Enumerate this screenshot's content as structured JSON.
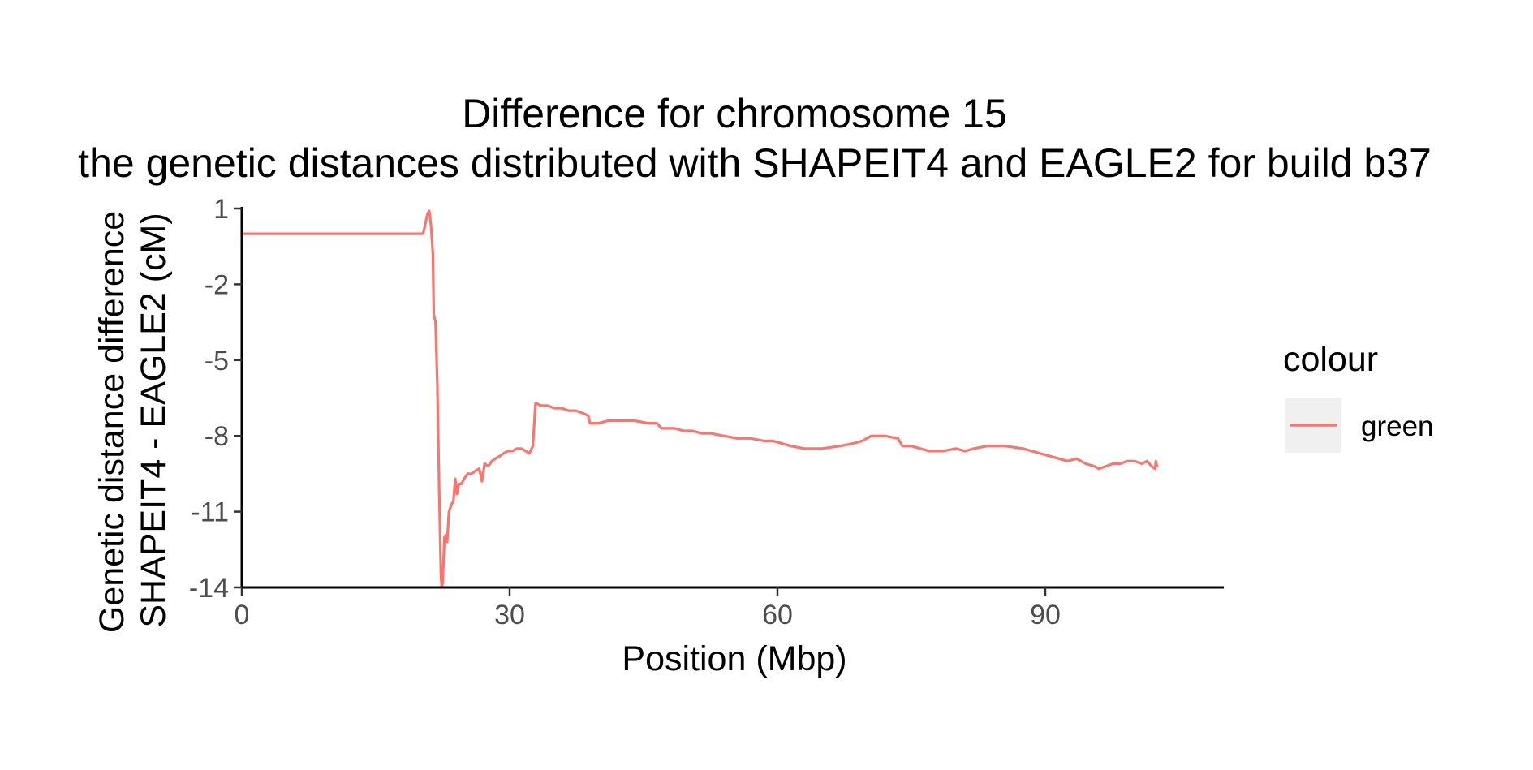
{
  "chart_data": {
    "type": "line",
    "title": "Difference for chromosome 15",
    "subtitle": "the genetic distances distributed with SHAPEIT4 and EAGLE2 for build b37",
    "xlabel": "Position (Mbp)",
    "ylabel_line1": "Genetic distance difference",
    "ylabel_line2": "SHAPEIT4 - EAGLE2 (cM)",
    "xlim": [
      0,
      110
    ],
    "ylim": [
      -14,
      1
    ],
    "x_ticks": [
      0,
      30,
      60,
      90
    ],
    "x_tick_labels": [
      "0",
      "30",
      "60",
      "90"
    ],
    "y_ticks": [
      1,
      -2,
      -5,
      -8,
      -11,
      -14
    ],
    "y_tick_labels": [
      "1",
      "-2",
      "-5",
      "-8",
      "-11",
      "-14"
    ],
    "grid": false,
    "legend": {
      "title": "colour",
      "position": "right",
      "entries": [
        {
          "label": "green",
          "color": "#F8766D"
        }
      ]
    },
    "series": [
      {
        "color": "#F8766D",
        "points": [
          [
            0,
            0
          ],
          [
            20.3,
            0
          ],
          [
            20.5,
            0.3
          ],
          [
            20.8,
            0.8
          ],
          [
            21.0,
            0.9
          ],
          [
            21.2,
            0.3
          ],
          [
            21.4,
            -0.8
          ],
          [
            21.5,
            -3.2
          ],
          [
            21.7,
            -3.5
          ],
          [
            21.9,
            -6.0
          ],
          [
            22.1,
            -10.0
          ],
          [
            22.3,
            -13.5
          ],
          [
            22.4,
            -14.0
          ],
          [
            22.5,
            -13.8
          ],
          [
            22.7,
            -12.0
          ],
          [
            22.9,
            -11.9
          ],
          [
            23.0,
            -12.2
          ],
          [
            23.2,
            -11.0
          ],
          [
            23.5,
            -10.7
          ],
          [
            23.7,
            -10.6
          ],
          [
            23.9,
            -9.7
          ],
          [
            24.1,
            -10.3
          ],
          [
            24.3,
            -9.9
          ],
          [
            24.6,
            -9.9
          ],
          [
            24.9,
            -9.7
          ],
          [
            25.3,
            -9.5
          ],
          [
            25.7,
            -9.5
          ],
          [
            26.1,
            -9.4
          ],
          [
            26.6,
            -9.3
          ],
          [
            26.9,
            -9.8
          ],
          [
            27.2,
            -9.1
          ],
          [
            27.6,
            -9.2
          ],
          [
            28.0,
            -9.0
          ],
          [
            28.4,
            -8.9
          ],
          [
            28.9,
            -8.8
          ],
          [
            29.3,
            -8.7
          ],
          [
            29.8,
            -8.6
          ],
          [
            30.3,
            -8.6
          ],
          [
            30.8,
            -8.5
          ],
          [
            31.3,
            -8.5
          ],
          [
            31.8,
            -8.6
          ],
          [
            32.2,
            -8.7
          ],
          [
            32.6,
            -8.4
          ],
          [
            32.9,
            -6.7
          ],
          [
            33.5,
            -6.8
          ],
          [
            34.2,
            -6.8
          ],
          [
            35.0,
            -6.9
          ],
          [
            35.8,
            -6.9
          ],
          [
            36.6,
            -7.0
          ],
          [
            37.4,
            -7.0
          ],
          [
            38.2,
            -7.1
          ],
          [
            38.8,
            -7.2
          ],
          [
            39.0,
            -7.5
          ],
          [
            40.0,
            -7.5
          ],
          [
            41.0,
            -7.4
          ],
          [
            42.5,
            -7.4
          ],
          [
            44.0,
            -7.4
          ],
          [
            45.5,
            -7.5
          ],
          [
            46.5,
            -7.5
          ],
          [
            47.0,
            -7.7
          ],
          [
            48.5,
            -7.7
          ],
          [
            49.5,
            -7.8
          ],
          [
            50.5,
            -7.8
          ],
          [
            51.5,
            -7.9
          ],
          [
            52.5,
            -7.9
          ],
          [
            54.0,
            -8.0
          ],
          [
            55.5,
            -8.1
          ],
          [
            57.0,
            -8.1
          ],
          [
            58.5,
            -8.2
          ],
          [
            59.5,
            -8.2
          ],
          [
            60.5,
            -8.3
          ],
          [
            61.5,
            -8.4
          ],
          [
            63.0,
            -8.5
          ],
          [
            65.0,
            -8.5
          ],
          [
            67.0,
            -8.4
          ],
          [
            68.5,
            -8.3
          ],
          [
            69.5,
            -8.2
          ],
          [
            70.5,
            -8.0
          ],
          [
            72.0,
            -8.0
          ],
          [
            73.5,
            -8.1
          ],
          [
            74.0,
            -8.4
          ],
          [
            75.0,
            -8.4
          ],
          [
            76.0,
            -8.5
          ],
          [
            77.0,
            -8.6
          ],
          [
            78.5,
            -8.6
          ],
          [
            80.0,
            -8.5
          ],
          [
            81.0,
            -8.6
          ],
          [
            82.0,
            -8.5
          ],
          [
            83.5,
            -8.4
          ],
          [
            85.5,
            -8.4
          ],
          [
            87.5,
            -8.5
          ],
          [
            88.5,
            -8.6
          ],
          [
            89.5,
            -8.7
          ],
          [
            90.5,
            -8.8
          ],
          [
            91.5,
            -8.9
          ],
          [
            92.5,
            -9.0
          ],
          [
            93.5,
            -8.9
          ],
          [
            94.5,
            -9.1
          ],
          [
            95.5,
            -9.2
          ],
          [
            96.0,
            -9.3
          ],
          [
            96.8,
            -9.2
          ],
          [
            97.6,
            -9.1
          ],
          [
            98.4,
            -9.1
          ],
          [
            99.2,
            -9.0
          ],
          [
            100.0,
            -9.0
          ],
          [
            100.8,
            -9.1
          ],
          [
            101.4,
            -9.0
          ],
          [
            101.9,
            -9.2
          ],
          [
            102.3,
            -9.3
          ],
          [
            102.4,
            -9.0
          ],
          [
            102.5,
            -9.2
          ]
        ]
      }
    ]
  }
}
